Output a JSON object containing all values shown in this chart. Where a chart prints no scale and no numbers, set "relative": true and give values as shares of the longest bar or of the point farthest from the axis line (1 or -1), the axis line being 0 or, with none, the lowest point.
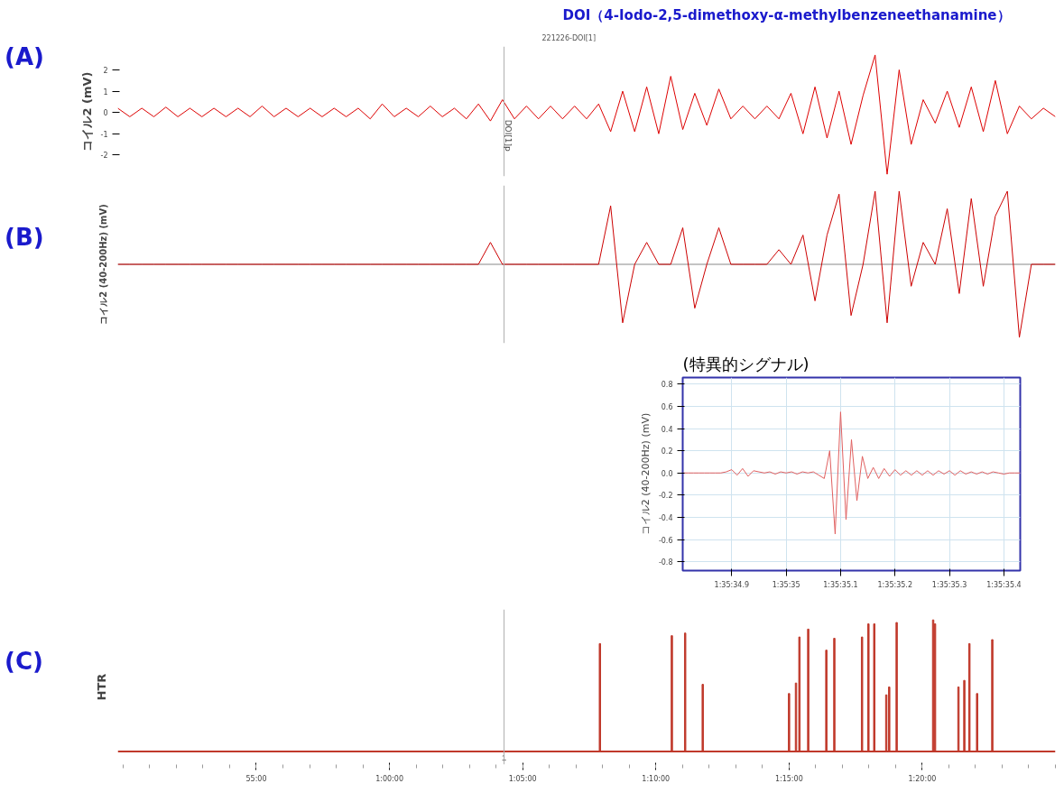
{
  "chart_data": [
    {
      "type": "line",
      "title": "DOI（4-Iodo-2,5-dimethoxy-α-methylbenzeneethanamine）",
      "subtitle": "221226-DOI[1]",
      "annotations": [
        "(A)",
        "DOI[1]p"
      ],
      "ylabel": "コイル2 (mV)",
      "ylim": [
        -3.0,
        3.1
      ],
      "yticks": [
        -2,
        -1,
        0,
        1,
        2
      ],
      "tick_labels": "y",
      "grid": false,
      "categories": [
        null,
        null,
        null,
        null,
        null,
        null,
        null,
        null,
        null,
        null,
        null,
        null,
        null,
        null,
        null,
        null,
        null,
        null,
        null,
        null,
        null,
        null,
        null,
        null,
        null,
        null,
        null,
        null,
        null,
        null,
        null,
        null,
        null,
        null,
        null,
        null,
        null,
        null,
        null,
        null,
        null,
        null,
        null,
        null,
        null,
        null,
        null,
        null,
        null,
        null,
        null,
        null,
        null,
        null,
        null,
        null,
        null,
        null,
        null,
        null,
        null,
        null,
        null,
        null,
        null,
        null,
        null,
        null,
        null,
        null,
        null,
        null,
        null,
        null,
        null,
        null,
        null,
        null,
        null
      ],
      "series": [
        {
          "color": "#dd0000",
          "values": [
            0.2,
            -0.2,
            0.2,
            -0.2,
            0.25,
            -0.2,
            0.2,
            -0.2,
            0.2,
            -0.2,
            0.2,
            -0.2,
            0.3,
            -0.2,
            0.2,
            -0.2,
            0.2,
            -0.2,
            0.2,
            -0.2,
            0.2,
            -0.3,
            0.4,
            -0.2,
            0.2,
            -0.2,
            0.3,
            -0.2,
            0.2,
            -0.3,
            0.4,
            -0.4,
            0.6,
            -0.3,
            0.3,
            -0.3,
            0.3,
            -0.3,
            0.3,
            -0.3,
            0.4,
            -0.9,
            1.0,
            -0.9,
            1.2,
            -1.0,
            1.7,
            -0.8,
            0.9,
            -0.6,
            1.1,
            -0.3,
            0.3,
            -0.3,
            0.3,
            -0.3,
            0.9,
            -1.0,
            1.2,
            -1.2,
            1.0,
            -1.5,
            0.8,
            2.7,
            -2.9,
            2.0,
            -1.5,
            0.6,
            -0.5,
            1.0,
            -0.7,
            1.2,
            -0.9,
            1.5,
            -1.0,
            0.3,
            -0.3,
            0.2,
            -0.2
          ]
        }
      ]
    },
    {
      "type": "line",
      "annotations": [
        "(B)"
      ],
      "ylabel": "コイル2 (40-200Hz) (mV)",
      "relative": true,
      "tick_labels": false,
      "grid": false,
      "categories": [
        null,
        null,
        null,
        null,
        null,
        null,
        null,
        null,
        null,
        null,
        null,
        null,
        null,
        null,
        null,
        null,
        null,
        null,
        null,
        null,
        null,
        null,
        null,
        null,
        null,
        null,
        null,
        null,
        null,
        null,
        null,
        null,
        null,
        null,
        null,
        null,
        null,
        null,
        null,
        null,
        null,
        null,
        null,
        null,
        null,
        null,
        null,
        null,
        null,
        null,
        null,
        null,
        null,
        null,
        null,
        null,
        null,
        null,
        null,
        null,
        null,
        null,
        null,
        null,
        null,
        null,
        null,
        null,
        null,
        null,
        null,
        null,
        null,
        null,
        null,
        null,
        null,
        null,
        null
      ],
      "series": [
        {
          "color": "#cc0000",
          "values": [
            0,
            0,
            0,
            0,
            0,
            0,
            0,
            0,
            0,
            0,
            0,
            0,
            0,
            0,
            0,
            0,
            0,
            0,
            0,
            0,
            0,
            0,
            0,
            0,
            0,
            0,
            0,
            0,
            0,
            0,
            0,
            0.3,
            0,
            0,
            0,
            0,
            0,
            0,
            0,
            0,
            0,
            0.8,
            -0.8,
            0,
            0.3,
            0,
            0,
            0.5,
            -0.6,
            0,
            0.5,
            0,
            0,
            0,
            0,
            0.2,
            0,
            0.4,
            -0.5,
            0.4,
            0.96,
            -0.7,
            0,
            1.0,
            -0.8,
            1.0,
            -0.3,
            0.3,
            0,
            0.76,
            -0.4,
            0.9,
            -0.3,
            0.66,
            1.0,
            -1.0,
            0,
            0,
            0
          ]
        }
      ]
    },
    {
      "type": "line",
      "title": "(特異的シグナル)",
      "ylabel": "コイル2 (40-200Hz) (mV)",
      "ylim": [
        -0.88,
        0.86
      ],
      "yticks": [
        -0.8,
        -0.6,
        -0.4,
        -0.2,
        {
          "value": 0,
          "label": "0.0"
        },
        0.2,
        0.4,
        0.6,
        0.8
      ],
      "categories": [
        null,
        null,
        null,
        null,
        null,
        null,
        null,
        null,
        null,
        "1:35:34.9",
        null,
        null,
        null,
        null,
        null,
        null,
        null,
        null,
        null,
        "1:35:35",
        null,
        null,
        null,
        null,
        null,
        null,
        null,
        null,
        null,
        "1:35:35.1",
        null,
        null,
        null,
        null,
        null,
        null,
        null,
        null,
        null,
        "1:35:35.2",
        null,
        null,
        null,
        null,
        null,
        null,
        null,
        null,
        null,
        "1:35:35.3",
        null,
        null,
        null,
        null,
        null,
        null,
        null,
        null,
        null,
        "1:35:35.4",
        null,
        null,
        null
      ],
      "grid": true,
      "series": [
        {
          "color": "#e06060",
          "values": [
            0,
            0,
            0,
            0,
            0,
            0,
            0,
            0,
            0.01,
            0.03,
            -0.02,
            0.04,
            -0.03,
            0.02,
            0.01,
            0,
            0.01,
            -0.01,
            0.01,
            0,
            0.01,
            -0.01,
            0.01,
            0,
            0.01,
            -0.02,
            -0.05,
            0.2,
            -0.55,
            0.55,
            -0.42,
            0.3,
            -0.25,
            0.15,
            -0.05,
            0.05,
            -0.05,
            0.04,
            -0.03,
            0.03,
            -0.02,
            0.02,
            -0.02,
            0.02,
            -0.02,
            0.02,
            -0.02,
            0.02,
            -0.01,
            0.02,
            -0.02,
            0.02,
            -0.01,
            0.01,
            -0.01,
            0.01,
            -0.01,
            0.01,
            0,
            -0.01,
            0,
            0,
            0
          ]
        }
      ]
    },
    {
      "type": "bar",
      "annotations": [
        "(C)",
        {
          "text": "1",
          "x": 64.3
        }
      ],
      "ylabel": "HTR",
      "relative": true,
      "xlim": [
        49.8,
        85.0
      ],
      "tick_labels": "x",
      "grid": false,
      "xticks": [
        {
          "value": 55,
          "label": "55:00"
        },
        {
          "value": 60,
          "label": "1:00:00"
        },
        {
          "value": 65,
          "label": "1:05:00"
        },
        {
          "value": 70,
          "label": "1:10:00"
        },
        {
          "value": 75,
          "label": "1:15:00"
        },
        {
          "value": 80,
          "label": "1:20:00"
        }
      ],
      "ref_lines": [
        {
          "axis": "x",
          "value": 64.3,
          "color": "#b0b0b0"
        }
      ],
      "series": [
        {
          "color": "#c0392b",
          "x": [
            67.9,
            70.6,
            71.1,
            71.76,
            75.0,
            75.26,
            75.39,
            75.72,
            76.4,
            76.7,
            77.74,
            77.98,
            78.2,
            78.65,
            78.76,
            79.04,
            80.41,
            80.48,
            81.36,
            81.58,
            81.77,
            82.06,
            82.63
          ],
          "values": [
            0.82,
            0.88,
            0.9,
            0.51,
            0.44,
            0.52,
            0.87,
            0.93,
            0.77,
            0.86,
            0.87,
            0.97,
            0.97,
            0.43,
            0.49,
            0.98,
            1.0,
            0.97,
            0.49,
            0.54,
            0.82,
            0.44,
            0.85
          ]
        }
      ]
    }
  ]
}
